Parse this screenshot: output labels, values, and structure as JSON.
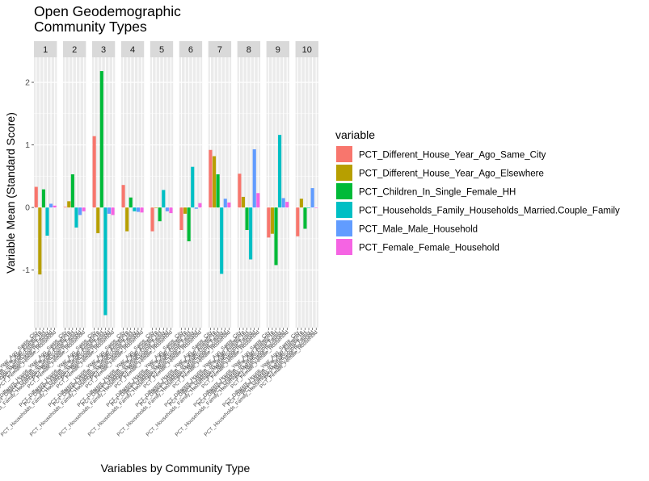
{
  "chart_data": {
    "type": "bar",
    "title_lines": [
      "Open Geodemographic",
      "Community Types"
    ],
    "xlabel": "Variables by Community Type",
    "ylabel": "Variable Mean (Standard Score)",
    "ylim": [
      -1.92,
      2.4
    ],
    "yticks": [
      -1,
      0,
      1,
      2
    ],
    "ytick_labels": [
      "-1",
      "0",
      "1",
      "2"
    ],
    "facets": [
      "1",
      "2",
      "3",
      "4",
      "5",
      "6",
      "7",
      "8",
      "9",
      "10"
    ],
    "legend_title": "variable",
    "series": [
      {
        "name": "PCT_Different_House_Year_Ago_Same_City",
        "color": "#F8766D",
        "values": [
          0.33,
          0.01,
          1.14,
          0.36,
          -0.38,
          -0.36,
          0.92,
          0.54,
          -0.48,
          -0.46
        ]
      },
      {
        "name": "PCT_Different_House_Year_Ago_Elsewhere",
        "color": "#B79F00",
        "values": [
          -1.07,
          0.1,
          -0.41,
          -0.38,
          0.0,
          -0.1,
          0.82,
          0.17,
          -0.42,
          0.14
        ]
      },
      {
        "name": "PCT_Children_In_Single_Female_HH",
        "color": "#00BA38",
        "values": [
          0.29,
          0.53,
          2.18,
          0.16,
          -0.22,
          -0.54,
          0.53,
          -0.36,
          -0.92,
          -0.34
        ]
      },
      {
        "name": "PCT_Households_Family_Households_Married.Couple_Family",
        "color": "#00BFC4",
        "values": [
          -0.45,
          -0.32,
          -1.72,
          -0.06,
          0.28,
          0.65,
          -1.06,
          -0.83,
          1.16,
          0.0
        ]
      },
      {
        "name": "PCT_Male_Male_Household",
        "color": "#619CFF",
        "values": [
          0.06,
          -0.12,
          -0.1,
          -0.07,
          -0.06,
          -0.02,
          0.14,
          0.93,
          0.15,
          0.31
        ]
      },
      {
        "name": "PCT_Female_Female_Household",
        "color": "#F564E3",
        "values": [
          0.03,
          -0.06,
          -0.12,
          -0.08,
          -0.09,
          0.07,
          0.08,
          0.23,
          0.09,
          0.0
        ]
      }
    ],
    "x_tick_labels": [
      "PCT_Different_House_Year_Ago_Same_City",
      "PCT_Different_House_Year_Ago_Elsewhere",
      "PCT_Children_In_Single_Female_HH",
      "PCT_Households_Family_Households_Married.Couple_Family",
      "PCT_Male_Male_Household",
      "PCT_Female_Female_Household"
    ],
    "panel_background": "#EBEBEB",
    "strip_background": "#D9D9D9",
    "grid_color": "#FFFFFF"
  }
}
